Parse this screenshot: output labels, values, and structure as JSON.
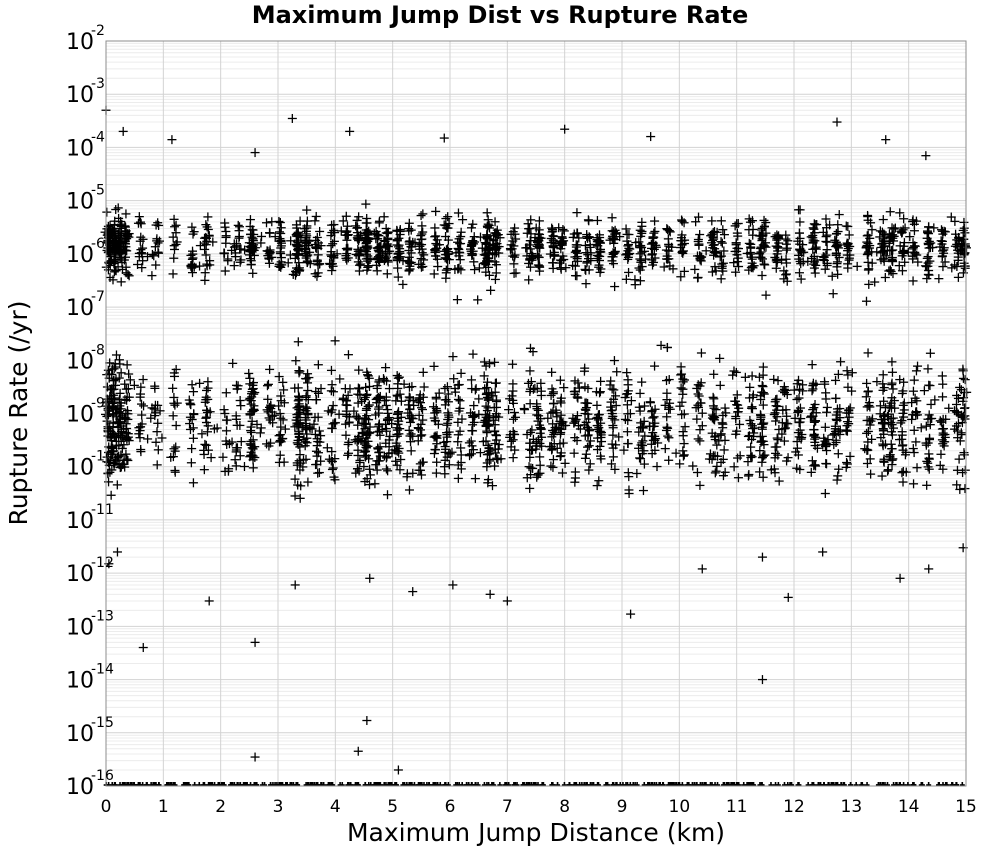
{
  "chart_data": {
    "type": "scatter",
    "title": "Maximum Jump Dist vs Rupture Rate",
    "xlabel": "Maximum Jump Distance (km)",
    "ylabel": "Rupture Rate (/yr)",
    "xlim": [
      0,
      15
    ],
    "ylim": [
      1e-16,
      0.01
    ],
    "yscale": "log",
    "grid": true,
    "marker": "plus",
    "marker_color": "#000000",
    "x_ticks": [
      "0",
      "1",
      "2",
      "3",
      "4",
      "5",
      "6",
      "7",
      "8",
      "9",
      "10",
      "11",
      "12",
      "13",
      "14",
      "15"
    ],
    "y_ticks": [
      {
        "base": "10",
        "exp": "-16"
      },
      {
        "base": "10",
        "exp": "-15"
      },
      {
        "base": "10",
        "exp": "-14"
      },
      {
        "base": "10",
        "exp": "-13"
      },
      {
        "base": "10",
        "exp": "-12"
      },
      {
        "base": "10",
        "exp": "-11"
      },
      {
        "base": "10",
        "exp": "-10"
      },
      {
        "base": "10",
        "exp": "-9"
      },
      {
        "base": "10",
        "exp": "-8"
      },
      {
        "base": "10",
        "exp": "-7"
      },
      {
        "base": "10",
        "exp": "-6"
      },
      {
        "base": "10",
        "exp": "-5"
      },
      {
        "base": "10",
        "exp": "-4"
      },
      {
        "base": "10",
        "exp": "-3"
      },
      {
        "base": "10",
        "exp": "-2"
      }
    ],
    "column_distances_km": [
      0.05,
      0.15,
      0.25,
      0.35,
      0.6,
      0.9,
      1.2,
      1.5,
      1.75,
      2.1,
      2.3,
      2.55,
      2.85,
      3.05,
      3.35,
      3.5,
      3.7,
      3.95,
      4.2,
      4.4,
      4.55,
      4.75,
      4.9,
      5.1,
      5.3,
      5.5,
      5.75,
      5.95,
      6.15,
      6.4,
      6.65,
      6.8,
      7.1,
      7.4,
      7.55,
      7.8,
      7.95,
      8.2,
      8.4,
      8.6,
      8.85,
      9.1,
      9.35,
      9.55,
      9.8,
      10.05,
      10.35,
      10.6,
      10.75,
      11.0,
      11.25,
      11.45,
      11.7,
      11.85,
      12.1,
      12.35,
      12.55,
      12.75,
      12.95,
      13.3,
      13.55,
      13.7,
      13.9,
      14.1,
      14.35,
      14.6,
      14.85,
      14.97
    ],
    "column_densities": [
      3,
      3,
      2.5,
      2,
      1,
      0.8,
      0.8,
      1,
      1.2,
      0.8,
      1,
      2.5,
      1,
      1.4,
      3,
      2.2,
      1.4,
      1.4,
      1.2,
      1.8,
      3,
      2,
      1.8,
      2,
      1.5,
      1.5,
      1.5,
      1.8,
      1.2,
      1.4,
      3,
      1.8,
      1.2,
      1.6,
      2,
      1.6,
      1.4,
      1.4,
      1.6,
      1.8,
      1.5,
      1.2,
      1.5,
      1.4,
      1,
      1.2,
      1.2,
      1.6,
      1,
      1.2,
      1.5,
      2,
      1.4,
      1,
      1.6,
      1.8,
      1.2,
      1.6,
      1.2,
      1.5,
      1.8,
      2,
      1.4,
      1.2,
      1.5,
      1.2,
      1.2,
      1.5
    ],
    "points": [
      {
        "x": 0.0,
        "y": 0.0005
      },
      {
        "x": 0.3,
        "y": 0.0002
      },
      {
        "x": 1.15,
        "y": 0.00014
      },
      {
        "x": 2.6,
        "y": 8e-05
      },
      {
        "x": 3.25,
        "y": 0.00035
      },
      {
        "x": 4.25,
        "y": 0.0002
      },
      {
        "x": 5.9,
        "y": 0.00015
      },
      {
        "x": 8.0,
        "y": 0.00022
      },
      {
        "x": 12.75,
        "y": 0.0003
      },
      {
        "x": 13.6,
        "y": 0.00014
      },
      {
        "x": 14.3,
        "y": 7e-05
      },
      {
        "x": 9.5,
        "y": 0.00016
      },
      {
        "x": 0.05,
        "y": 1.5e-12
      },
      {
        "x": 0.2,
        "y": 2.5e-12
      },
      {
        "x": 1.8,
        "y": 3e-13
      },
      {
        "x": 0.65,
        "y": 4e-14
      },
      {
        "x": 2.6,
        "y": 5e-14
      },
      {
        "x": 2.6,
        "y": 3.5e-16
      },
      {
        "x": 4.4,
        "y": 4.5e-16
      },
      {
        "x": 4.55,
        "y": 1.7e-15
      },
      {
        "x": 5.1,
        "y": 2e-16
      },
      {
        "x": 9.15,
        "y": 1.7e-13
      },
      {
        "x": 11.45,
        "y": 1e-14
      },
      {
        "x": 11.9,
        "y": 3.5e-13
      },
      {
        "x": 7.0,
        "y": 3e-13
      },
      {
        "x": 13.85,
        "y": 8e-13
      },
      {
        "x": 14.35,
        "y": 1.2e-12
      },
      {
        "x": 3.3,
        "y": 6e-13
      },
      {
        "x": 4.6,
        "y": 8e-13
      },
      {
        "x": 5.35,
        "y": 4.5e-13
      },
      {
        "x": 6.05,
        "y": 6e-13
      },
      {
        "x": 6.7,
        "y": 4e-13
      },
      {
        "x": 14.95,
        "y": 3e-12
      },
      {
        "x": 10.4,
        "y": 1.2e-12
      },
      {
        "x": 11.45,
        "y": 2e-12
      },
      {
        "x": 12.5,
        "y": 2.5e-12
      }
    ],
    "floor_value": 1e-16
  }
}
